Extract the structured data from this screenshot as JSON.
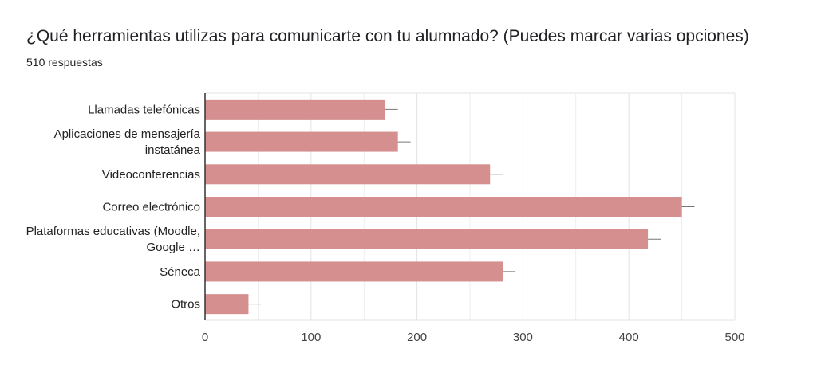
{
  "header": {
    "title": "¿Qué herramientas utilizas para comunicarte con tu alumnado? (Puedes marcar varias opciones)",
    "responses": "510 respuestas"
  },
  "colors": {
    "bar": "#d48f8e",
    "grid": "#e3e3e3",
    "axis": "#333333",
    "error_bar": "#777777"
  },
  "chart_data": {
    "type": "bar",
    "orientation": "horizontal",
    "title": "¿Qué herramientas utilizas para comunicarte con tu alumnado? (Puedes marcar varias opciones)",
    "categories": [
      {
        "lines": [
          "Llamadas telefónicas"
        ]
      },
      {
        "lines": [
          "Aplicaciones de mensajería",
          "instatánea"
        ]
      },
      {
        "lines": [
          "Videoconferencias"
        ]
      },
      {
        "lines": [
          "Correo electrónico"
        ]
      },
      {
        "lines": [
          "Plataformas educativas (Moodle,",
          "Google …"
        ]
      },
      {
        "lines": [
          "Séneca"
        ]
      },
      {
        "lines": [
          "Otros"
        ]
      }
    ],
    "values": [
      170,
      182,
      269,
      450,
      418,
      281,
      41
    ],
    "error": [
      12,
      12,
      12,
      12,
      12,
      12,
      12
    ],
    "xlim": [
      0,
      500
    ],
    "ticks": [
      0,
      100,
      200,
      300,
      400,
      500
    ],
    "tick_labels": [
      "0",
      "100",
      "200",
      "300",
      "400",
      "500"
    ],
    "grid": true,
    "legend": "none"
  }
}
